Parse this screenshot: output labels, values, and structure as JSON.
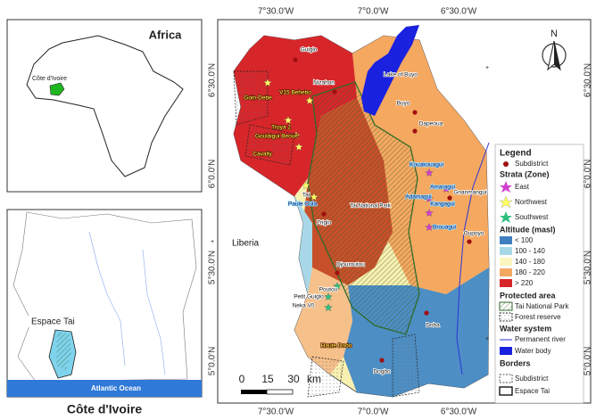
{
  "insets": {
    "africa": {
      "title": "Africa",
      "country": "Côte d'Ivoire"
    },
    "cote_divoire": {
      "region": "Espace Tai",
      "ocean": "Atlantic Ocean",
      "caption": "Côte d'Ivoire"
    }
  },
  "map": {
    "lon_labels_top": [
      "7°30.0'W",
      "7°0.0'W",
      "6°30.0'W"
    ],
    "lon_labels_bottom": [
      "7°30.0'W",
      "7°0.0'W",
      "6°30.0'W"
    ],
    "lat_labels_left": [
      "6°30.0'N",
      "6°0.0'N",
      "5°30.0'N",
      "5°0.0'N"
    ],
    "lat_labels_right": [
      "6°30.0'N",
      "6°0.0'N",
      "5°30.0'N",
      "5°0.0'N"
    ],
    "north": "N",
    "scale_bar": {
      "ticks": [
        0,
        15,
        30
      ],
      "unit": "km"
    },
    "places": [
      "Guiglo",
      "Nizahon",
      "Lake of Buyo",
      "Buyo",
      "Dapeoua",
      "Goin-Debe",
      "V15 Behebo",
      "Troya 2",
      "Goulaigui Beoue",
      "Cavally",
      "Tai",
      "Paule Oula",
      "Tai National Park",
      "Zriglo",
      "Liberia",
      "Kouakouagui",
      "Amaragui",
      "Gnanmangui",
      "Adamagui",
      "Kangagui",
      "Brouagui",
      "Oupoyo",
      "Djouroutou",
      "Poutou",
      "Petit Guiglo",
      "Neka V0",
      "Doba",
      "Haute Dodo",
      "Dogbo"
    ]
  },
  "legend": {
    "title": "Legend",
    "subdistrict": "Subdistrict",
    "strata_title": "Strata (Zone)",
    "strata": [
      "East",
      "Northwest",
      "Southwest"
    ],
    "altitude_title": "Altitude (masl)",
    "altitude": [
      "< 100",
      "100 - 140",
      "140 - 180",
      "180 - 220",
      "> 220"
    ],
    "protected_title": "Protected area",
    "protected": [
      "Tai National Park",
      "Forest reserve"
    ],
    "water_title": "Water system",
    "water": [
      "Permanent river",
      "Water body"
    ],
    "borders_title": "Borders",
    "borders": [
      "Subdistrict",
      "Espace Tai"
    ]
  }
}
